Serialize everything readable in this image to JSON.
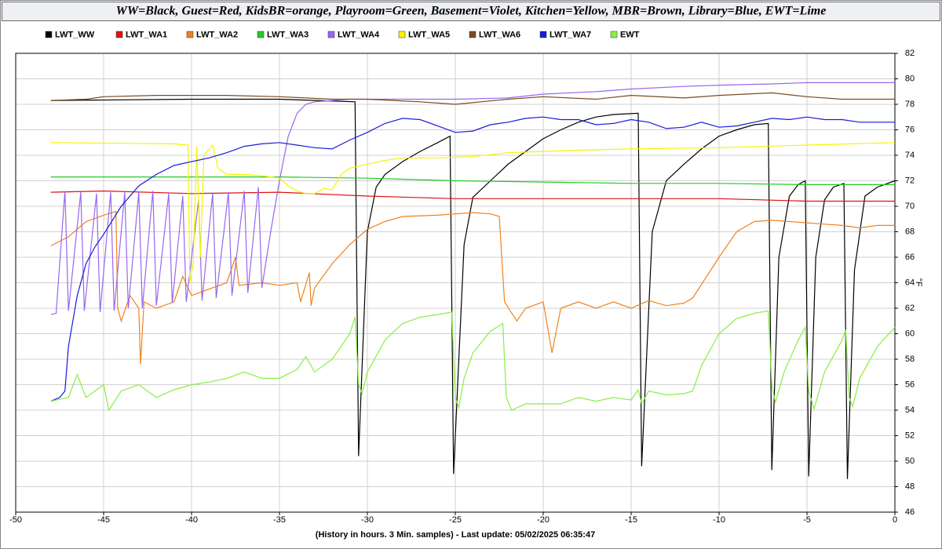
{
  "chart_data": {
    "type": "line",
    "title": "WW=Black, Guest=Red, KidsBR=orange, Playroom=Green, Basement=Violet, Kitchen=Yellow, MBR=Brown, Library=Blue, EWT=Lime",
    "xlabel": "(History in hours. 3 Min. samples) - Last update: 05/02/2025 06:35:47",
    "ylabel": "°F",
    "xlim": [
      -50,
      0
    ],
    "xticks": [
      -50,
      -45,
      -40,
      -35,
      -30,
      -25,
      -20,
      -15,
      -10,
      -5,
      0
    ],
    "ylim": [
      46,
      82
    ],
    "yticks": [
      46,
      48,
      50,
      52,
      54,
      56,
      58,
      60,
      62,
      64,
      66,
      68,
      70,
      72,
      74,
      76,
      78,
      80,
      82
    ],
    "grid": true,
    "series": [
      {
        "name": "LWT_WW",
        "color": "#000000",
        "x": [
          -48,
          -40,
          -35,
          -30.7,
          -30.5,
          -30,
          -29.5,
          -29,
          -28,
          -27,
          -26,
          -25.3,
          -25.1,
          -24.5,
          -24,
          -23,
          -22,
          -21,
          -20,
          -19,
          -18,
          -17,
          -16,
          -14.6,
          -14.4,
          -13.8,
          -13,
          -12,
          -11,
          -10,
          -9,
          -8,
          -7.2,
          -7,
          -6.6,
          -6,
          -5.5,
          -5.1,
          -4.9,
          -4.5,
          -4,
          -3.5,
          -2.9,
          -2.7,
          -2.3,
          -1.7,
          -1,
          0
        ],
        "values": [
          78.3,
          78.4,
          78.4,
          78.2,
          50.4,
          68,
          71.5,
          72.5,
          73.5,
          74.3,
          75,
          75.5,
          49,
          67,
          70.7,
          72,
          73.3,
          74.3,
          75.3,
          76,
          76.6,
          77,
          77.2,
          77.3,
          49.6,
          68,
          72,
          73.3,
          74.5,
          75.5,
          76,
          76.4,
          76.5,
          49.3,
          66,
          70.8,
          71.7,
          72,
          48.8,
          66,
          70.5,
          71.5,
          71.8,
          48.6,
          65,
          70.8,
          71.5,
          72
        ]
      },
      {
        "name": "LWT_WA1",
        "color": "#e01010",
        "x": [
          -48,
          -45,
          -40,
          -35,
          -30,
          -25,
          -20,
          -15,
          -10,
          -5,
          0
        ],
        "values": [
          71.1,
          71.2,
          71.0,
          71.1,
          70.8,
          70.6,
          70.6,
          70.6,
          70.6,
          70.4,
          70.4
        ]
      },
      {
        "name": "LWT_WA2",
        "color": "#f0821e",
        "x": [
          -48,
          -47,
          -46,
          -45,
          -44.3,
          -44.2,
          -44,
          -43.5,
          -43,
          -42.9,
          -42.7,
          -42,
          -41,
          -40.5,
          -40,
          -39,
          -38,
          -37.5,
          -37.3,
          -36,
          -35,
          -34,
          -33.8,
          -33.3,
          -33.2,
          -33,
          -32,
          -31,
          -30,
          -29,
          -28,
          -26,
          -25,
          -24,
          -23,
          -22.5,
          -22.2,
          -21.5,
          -21,
          -20,
          -19.5,
          -19,
          -18,
          -17,
          -16,
          -15,
          -14,
          -13,
          -12,
          -11.5,
          -10,
          -9,
          -8,
          -7,
          -6,
          -5,
          -4,
          -3,
          -2,
          -1,
          0
        ],
        "values": [
          66.9,
          67.6,
          68.8,
          69.3,
          69.6,
          62,
          61,
          63,
          62,
          57.6,
          62.5,
          62,
          62.5,
          64.5,
          63,
          63.5,
          64,
          66,
          63.8,
          64,
          63.8,
          64,
          62.5,
          64.8,
          62.2,
          63.6,
          65.5,
          67,
          68.2,
          68.8,
          69.2,
          69.3,
          69.4,
          69.5,
          69.4,
          69.2,
          62.5,
          61,
          62,
          62.5,
          58.5,
          62,
          62.5,
          62,
          62.5,
          62,
          62.6,
          62.2,
          62.4,
          62.8,
          66,
          68,
          68.8,
          68.9,
          68.8,
          68.7,
          68.6,
          68.5,
          68.3,
          68.5,
          68.5
        ]
      },
      {
        "name": "LWT_WA3",
        "color": "#22cc22",
        "x": [
          -48,
          -40,
          -35,
          -30,
          -25,
          -20,
          -15,
          -10,
          -5,
          0
        ],
        "values": [
          72.3,
          72.3,
          72.3,
          72.2,
          72.0,
          71.9,
          71.8,
          71.8,
          71.7,
          71.7
        ]
      },
      {
        "name": "LWT_WA4",
        "color": "#9966ee",
        "x": [
          -48,
          -47.7,
          -47.2,
          -47.0,
          -46.3,
          -46.1,
          -45.4,
          -45.2,
          -44.6,
          -44.4,
          -43.8,
          -43.6,
          -43.0,
          -42.8,
          -42.2,
          -42.0,
          -41.3,
          -41.1,
          -40.5,
          -40.3,
          -39.6,
          -39.4,
          -38.8,
          -38.6,
          -37.9,
          -37.7,
          -37.0,
          -36.8,
          -36.2,
          -36.0,
          -35.5,
          -35,
          -34.5,
          -34,
          -33.5,
          -33,
          -32,
          -31,
          -30,
          -28,
          -25,
          -22,
          -20,
          -17,
          -15,
          -12,
          -10,
          -7,
          -5,
          -2,
          0
        ],
        "values": [
          61.5,
          61.6,
          71.2,
          61.8,
          71.1,
          61.8,
          71.0,
          61.7,
          71.1,
          61.8,
          71.1,
          62,
          71.1,
          62,
          71.2,
          62.2,
          71.0,
          62.4,
          70.8,
          62.5,
          70.5,
          62.6,
          71.0,
          62.8,
          71.1,
          63,
          71.2,
          63.2,
          71.5,
          63.6,
          68,
          72,
          75.5,
          77.3,
          78,
          78.2,
          78.3,
          78.4,
          78.4,
          78.4,
          78.4,
          78.5,
          78.8,
          79,
          79.2,
          79.4,
          79.5,
          79.6,
          79.7,
          79.7,
          79.7
        ]
      },
      {
        "name": "LWT_WA5",
        "color": "#f5f500",
        "x": [
          -48,
          -41,
          -40.2,
          -40.1,
          -39.9,
          -39.7,
          -39.5,
          -39.3,
          -38.8,
          -38.5,
          -38,
          -37,
          -36,
          -35,
          -34.5,
          -34,
          -33.5,
          -33,
          -32.5,
          -32,
          -31.5,
          -31,
          -30,
          -29,
          -28,
          -26,
          -24,
          -22,
          -20,
          -18,
          -15,
          -10,
          -5,
          0
        ],
        "values": [
          75,
          74.9,
          74.8,
          64,
          65.5,
          74.7,
          66,
          74,
          74.8,
          73,
          72.5,
          72.5,
          72.4,
          72.2,
          71.6,
          71.2,
          71,
          71,
          71.4,
          71.3,
          72.5,
          73,
          73.3,
          73.6,
          73.8,
          73.8,
          73.9,
          74.2,
          74.3,
          74.4,
          74.5,
          74.6,
          74.8,
          75
        ]
      },
      {
        "name": "LWT_WA6",
        "color": "#7a4a20",
        "x": [
          -48,
          -46,
          -45,
          -42,
          -38,
          -35,
          -32,
          -30,
          -27,
          -25,
          -22,
          -20,
          -17,
          -15,
          -12,
          -10,
          -7,
          -5,
          -3,
          0
        ],
        "values": [
          78.3,
          78.4,
          78.6,
          78.7,
          78.7,
          78.6,
          78.4,
          78.4,
          78.2,
          78.0,
          78.4,
          78.6,
          78.4,
          78.7,
          78.5,
          78.7,
          78.9,
          78.6,
          78.4,
          78.4
        ]
      },
      {
        "name": "LWT_WA7",
        "color": "#1a1adc",
        "x": [
          -48,
          -47.5,
          -47.2,
          -47,
          -46.5,
          -46,
          -45.5,
          -45,
          -44,
          -43,
          -42,
          -41,
          -40,
          -39,
          -38,
          -37,
          -36,
          -35,
          -34,
          -33,
          -32,
          -31,
          -30,
          -29,
          -28,
          -27,
          -26,
          -25,
          -24,
          -23,
          -22,
          -21,
          -20,
          -19,
          -18,
          -17,
          -16,
          -15,
          -14,
          -13,
          -12,
          -11,
          -10,
          -9,
          -8,
          -7,
          -6,
          -5,
          -4,
          -3,
          -2,
          -1,
          0
        ],
        "values": [
          54.7,
          55,
          55.5,
          59,
          63,
          65.5,
          66.8,
          67.8,
          70,
          71.6,
          72.5,
          73.2,
          73.5,
          73.8,
          74.2,
          74.7,
          74.9,
          75.0,
          74.8,
          74.6,
          74.5,
          75.2,
          75.8,
          76.5,
          76.9,
          76.8,
          76.3,
          75.8,
          75.9,
          76.4,
          76.6,
          76.9,
          77.0,
          76.8,
          76.8,
          76.4,
          76.5,
          76.8,
          76.6,
          76.1,
          76.2,
          76.6,
          76.2,
          76.3,
          76.6,
          76.9,
          76.8,
          77.0,
          76.8,
          76.8,
          76.6,
          76.6,
          76.6
        ]
      },
      {
        "name": "EWT",
        "color": "#88ee44",
        "x": [
          -48,
          -47,
          -46.5,
          -46,
          -45,
          -44.7,
          -44,
          -43,
          -42,
          -41,
          -40,
          -39,
          -38,
          -37,
          -36,
          -35,
          -34,
          -33.5,
          -33,
          -32,
          -31,
          -30.7,
          -30.5,
          -30.3,
          -30,
          -29,
          -28,
          -27,
          -26,
          -25.2,
          -25,
          -24.8,
          -24.5,
          -24,
          -23,
          -22.3,
          -22.1,
          -21.8,
          -21,
          -20,
          -19,
          -18,
          -17,
          -16,
          -15,
          -14.6,
          -14.4,
          -14,
          -13,
          -12,
          -11.5,
          -11,
          -10,
          -9,
          -8,
          -7.2,
          -7,
          -6.8,
          -6.3,
          -5.5,
          -5.1,
          -4.9,
          -4.6,
          -4,
          -3,
          -2.8,
          -2.6,
          -2.4,
          -2,
          -1,
          0
        ],
        "values": [
          54.7,
          55,
          56.8,
          55,
          56,
          54,
          55.5,
          56,
          55,
          55.6,
          56,
          56.2,
          56.5,
          57,
          56.5,
          56.5,
          57.2,
          58.2,
          57,
          58,
          60,
          61.3,
          56,
          55.3,
          57,
          59.5,
          60.8,
          61.3,
          61.5,
          61.7,
          55,
          54.2,
          56.5,
          58.5,
          60.2,
          60.8,
          55,
          54,
          54.5,
          54.5,
          54.5,
          55,
          54.7,
          55,
          54.8,
          55.6,
          54.5,
          55.5,
          55.2,
          55.3,
          55.5,
          57.5,
          60,
          61.2,
          61.6,
          61.8,
          56,
          54.6,
          57,
          59.5,
          60.5,
          55.5,
          54.1,
          57,
          59.5,
          60.3,
          55,
          54.3,
          56.5,
          59,
          60.5
        ]
      }
    ]
  }
}
